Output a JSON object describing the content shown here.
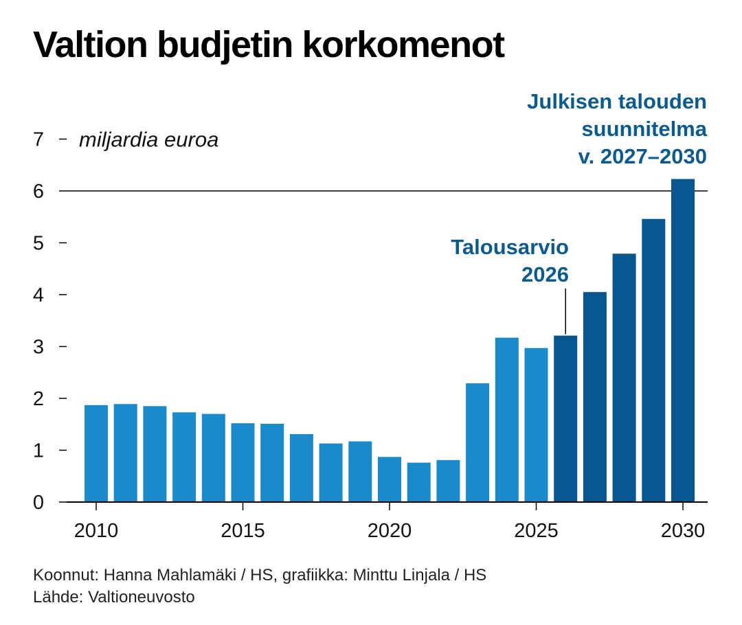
{
  "title": "Valtion budjetin korkomenot",
  "footer": {
    "credits": "Koonnut: Hanna Mahlamäki / HS, grafiikka: Minttu Linjala / HS",
    "source": "Lähde: Valtioneuvosto"
  },
  "colors": {
    "actual": "#1b8acb",
    "plan": "#08568f",
    "annotation": "#0b5a8c"
  },
  "chart_data": {
    "type": "bar",
    "ylabel": "miljardia euroa",
    "ylim": [
      0,
      7
    ],
    "yticks": [
      0,
      1,
      2,
      3,
      4,
      5,
      6,
      7
    ],
    "xticks": [
      2010,
      2015,
      2020,
      2025,
      2030
    ],
    "grid": "y = 6 line only",
    "categories": [
      2010,
      2011,
      2012,
      2013,
      2014,
      2015,
      2016,
      2017,
      2018,
      2019,
      2020,
      2021,
      2022,
      2023,
      2024,
      2025,
      2026,
      2027,
      2028,
      2029,
      2030
    ],
    "values": [
      1.87,
      1.89,
      1.85,
      1.73,
      1.7,
      1.52,
      1.51,
      1.31,
      1.13,
      1.17,
      0.87,
      0.76,
      0.81,
      2.29,
      3.17,
      2.97,
      3.21,
      4.05,
      4.79,
      5.46,
      6.23
    ],
    "plan_from": 2026,
    "annotations": [
      {
        "lines": [
          "Talousarvio",
          "2026"
        ],
        "year": 2026
      },
      {
        "lines": [
          "Julkisen talouden",
          "suunnitelma",
          "v. 2027–2030"
        ],
        "year": 2030
      }
    ]
  }
}
